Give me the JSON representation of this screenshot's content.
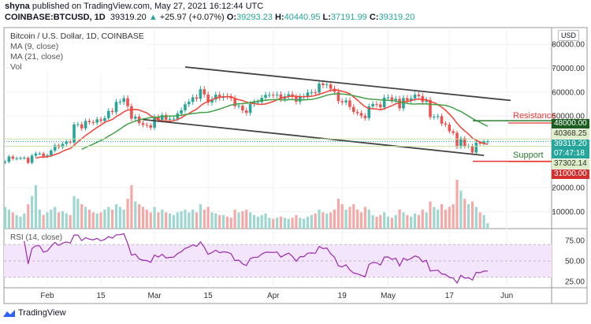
{
  "header": {
    "publisher": "shyna",
    "published_text": "published on TradingView.com, May 27, 2021 16:12:44 UTC",
    "symbol": "COINBASE:BTCUSD, 1D",
    "last": "39319.20",
    "change": "+25.97 (+0.07%)",
    "o_label": "O:",
    "o": "39293.23",
    "h_label": "H:",
    "h": "40440.95",
    "l_label": "L:",
    "l": "37191.99",
    "c_label": "C:",
    "c": "39319.20"
  },
  "legend": {
    "title": "Bitcoin / U.S. Dollar, 1D, COINBASE",
    "ma9": "MA (9, close)",
    "ma21": "MA (21, close)",
    "vol": "Vol"
  },
  "currency_button": "USD",
  "annotations": {
    "resistance": "Resistance",
    "support": "Support"
  },
  "price_labels": {
    "resistance": "48000.00",
    "high": "40368.25",
    "last": "39319.20",
    "countdown": "07:47:18",
    "low": "37302.14",
    "support": "31000.00"
  },
  "rsi": {
    "title": "RSI (14, close)",
    "ticks": [
      "75.00",
      "50.00",
      "25.00"
    ]
  },
  "brand": "TradingView",
  "colors": {
    "up": "#26a69a",
    "down": "#ef5350",
    "ma9": "#f44336",
    "ma21": "#43a047",
    "rsi": "#9c27b0",
    "resistance_bg": "#1b5e20",
    "support_bg": "#d32f2f"
  },
  "chart_data": {
    "type": "candlestick",
    "x_start": "2021-01-21",
    "x_end": "2021-05-27",
    "x_ticks": [
      {
        "label": "Feb",
        "date": "2021-02-01"
      },
      {
        "label": "15",
        "date": "2021-02-15"
      },
      {
        "label": "Mar",
        "date": "2021-03-01"
      },
      {
        "label": "15",
        "date": "2021-03-15"
      },
      {
        "label": "Apr",
        "date": "2021-04-01"
      },
      {
        "label": "19",
        "date": "2021-04-19"
      },
      {
        "label": "May",
        "date": "2021-05-01"
      },
      {
        "label": "17",
        "date": "2021-05-17"
      },
      {
        "label": "Jun",
        "date": "2021-06-01"
      }
    ],
    "y_ticks": [
      "80000.00",
      "70000.00",
      "60000.00",
      "50000.00",
      "20000.00",
      "10000.00"
    ],
    "y_tick_values": [
      80000,
      70000,
      60000,
      50000,
      20000,
      10000
    ],
    "closes": [
      30800,
      33000,
      32100,
      32300,
      32400,
      32500,
      30400,
      33400,
      34300,
      34300,
      33100,
      33500,
      35500,
      37700,
      36900,
      38300,
      39200,
      38900,
      46400,
      46500,
      44800,
      47900,
      47400,
      47200,
      48600,
      47900,
      49100,
      52100,
      51600,
      55900,
      55900,
      57400,
      54100,
      48900,
      49700,
      47000,
      46300,
      46100,
      45100,
      49600,
      48400,
      50400,
      48400,
      48800,
      48900,
      51000,
      52400,
      54900,
      55900,
      57800,
      57200,
      61200,
      59000,
      55600,
      56900,
      58900,
      57600,
      58300,
      58100,
      57400,
      54100,
      54300,
      52300,
      51300,
      55000,
      55800,
      55800,
      57600,
      58800,
      58800,
      58700,
      59000,
      57100,
      58200,
      59100,
      58000,
      56000,
      58100,
      58100,
      59800,
      59900,
      59800,
      63600,
      62900,
      63200,
      61400,
      60100,
      56200,
      55700,
      56500,
      53800,
      51700,
      51200,
      50100,
      49100,
      54000,
      55000,
      54800,
      53600,
      57700,
      57800,
      56600,
      57200,
      53200,
      57500,
      56400,
      57400,
      58900,
      58300,
      55900,
      56700,
      49500,
      49700,
      49900,
      46800,
      46400,
      43600,
      42900,
      37000,
      40700,
      37300,
      37500,
      34700,
      38800,
      38400,
      39300,
      39319.2
    ],
    "volume_relative": [
      40,
      35,
      30,
      25,
      22,
      28,
      45,
      60,
      80,
      35,
      25,
      30,
      35,
      40,
      30,
      32,
      28,
      25,
      60,
      55,
      45,
      40,
      35,
      30,
      28,
      30,
      35,
      40,
      35,
      45,
      40,
      35,
      55,
      80,
      50,
      45,
      40,
      35,
      30,
      40,
      30,
      35,
      30,
      28,
      25,
      30,
      32,
      35,
      30,
      35,
      30,
      45,
      35,
      40,
      30,
      28,
      25,
      25,
      22,
      20,
      35,
      30,
      32,
      35,
      30,
      25,
      22,
      25,
      28,
      20,
      18,
      20,
      22,
      20,
      18,
      20,
      25,
      20,
      18,
      22,
      25,
      28,
      35,
      30,
      28,
      30,
      35,
      55,
      45,
      35,
      40,
      45,
      35,
      30,
      40,
      35,
      25,
      22,
      25,
      30,
      22,
      20,
      25,
      35,
      30,
      25,
      22,
      28,
      25,
      35,
      30,
      50,
      40,
      35,
      45,
      35,
      40,
      45,
      90,
      70,
      55,
      45,
      50,
      40,
      30,
      25,
      10
    ],
    "channel_top": [
      [
        "2021-03-09",
        70500
      ],
      [
        "2021-06-02",
        56500
      ]
    ],
    "channel_bottom": [
      [
        "2021-02-26",
        48500
      ],
      [
        "2021-05-26",
        33500
      ]
    ],
    "lower_left_line": [
      [
        "2021-02-27",
        48800
      ],
      [
        "2021-06-02",
        33000
      ]
    ],
    "resistance_level": 48000,
    "support_level": 31000,
    "rsi_levels": [
      70,
      50,
      30
    ],
    "rsi_range": [
      18,
      85
    ]
  }
}
